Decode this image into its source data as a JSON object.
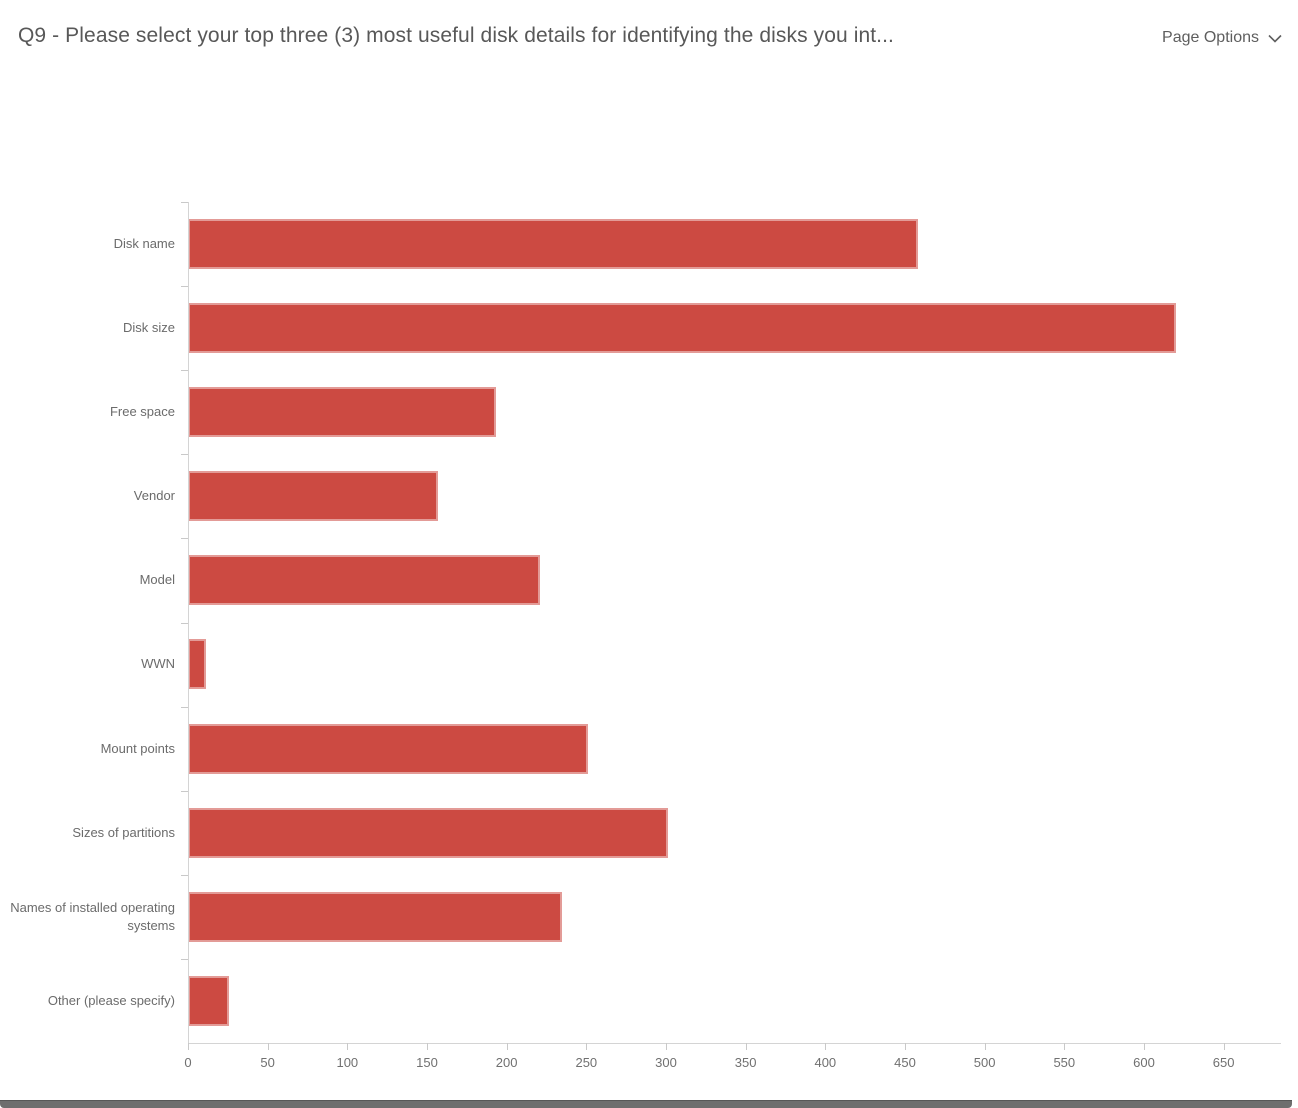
{
  "header": {
    "title": "Q9 - Please select your top three (3) most useful disk details for identifying the disks you int...",
    "page_options_label": "Page Options"
  },
  "chart_data": {
    "type": "bar",
    "orientation": "horizontal",
    "title": "",
    "xlabel": "",
    "ylabel": "",
    "categories": [
      "Disk name",
      "Disk size",
      "Free space",
      "Vendor",
      "Model",
      "WWN",
      "Mount points",
      "Sizes of partitions",
      "Names of installed operating systems",
      "Other (please specify)"
    ],
    "values": [
      458,
      620,
      193,
      157,
      221,
      11,
      251,
      301,
      235,
      26
    ],
    "xlim": [
      0,
      686
    ],
    "xticks": [
      0,
      50,
      100,
      150,
      200,
      250,
      300,
      350,
      400,
      450,
      500,
      550,
      600,
      650
    ],
    "grid": false,
    "legend": false,
    "bar_color": "#cc4a42"
  },
  "colors": {
    "bar": "#cc4a42",
    "axis": "#d4d4d4",
    "title_text": "#585858",
    "label_text": "#6b6b6b"
  }
}
